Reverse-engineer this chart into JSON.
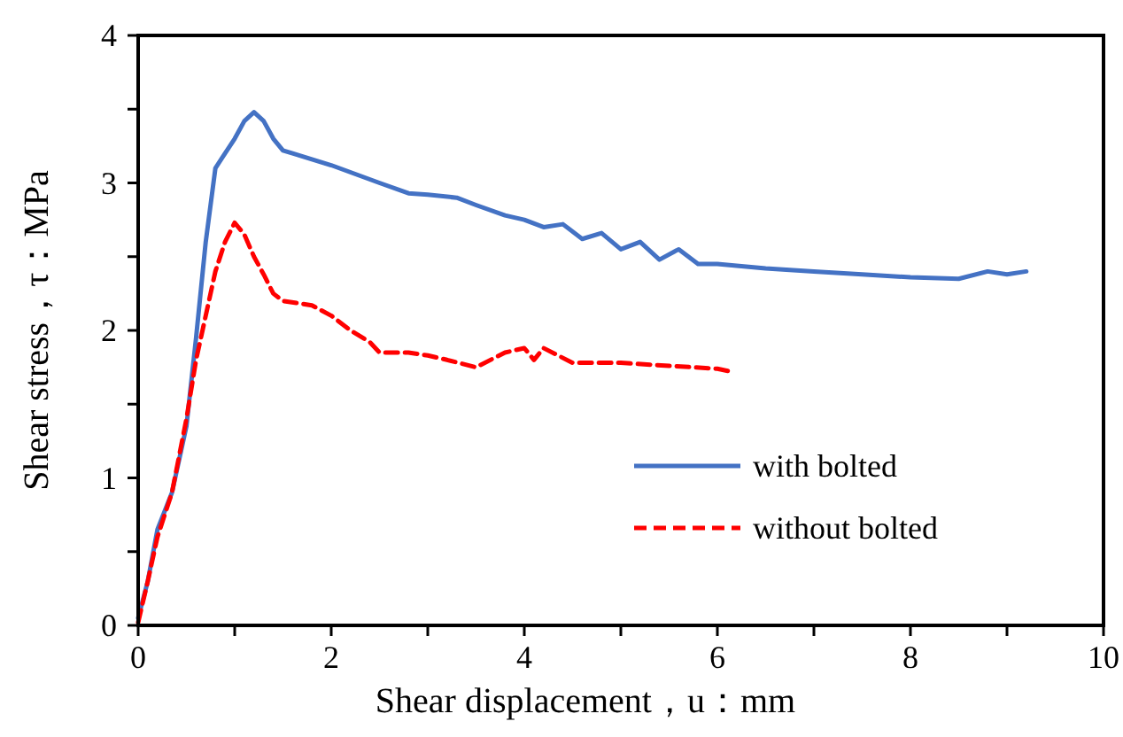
{
  "chart_data": {
    "type": "line",
    "xlabel": "Shear displacement，u：mm",
    "ylabel": "Shear stress，τ：MPa",
    "xlim": [
      0,
      10
    ],
    "ylim": [
      0,
      4
    ],
    "xticks": [
      0,
      {
        "value": 1,
        "label": null
      },
      2,
      {
        "value": 3,
        "label": null
      },
      4,
      {
        "value": 5,
        "label": null
      },
      6,
      {
        "value": 7,
        "label": null
      },
      8,
      {
        "value": 9,
        "label": null
      },
      10
    ],
    "yticks": [
      0,
      {
        "value": 0.5,
        "label": null
      },
      1,
      {
        "value": 1.5,
        "label": null
      },
      2,
      {
        "value": 2.5,
        "label": null
      },
      3,
      {
        "value": 3.5,
        "label": null
      },
      4
    ],
    "grid": false,
    "legend": "bottom right",
    "series": [
      {
        "name": "with bolted",
        "color": "#4472c4",
        "line_style": "solid",
        "x": [
          0,
          0.1,
          0.2,
          0.35,
          0.5,
          0.6,
          0.7,
          0.8,
          0.9,
          1.0,
          1.1,
          1.2,
          1.3,
          1.4,
          1.5,
          1.6,
          2.0,
          2.5,
          2.8,
          3.0,
          3.3,
          3.5,
          3.8,
          4.0,
          4.2,
          4.4,
          4.6,
          4.8,
          5.0,
          5.2,
          5.4,
          5.6,
          5.8,
          6.0,
          6.5,
          7.0,
          7.5,
          8.0,
          8.5,
          8.8,
          9.0,
          9.2
        ],
        "values": [
          0.05,
          0.3,
          0.65,
          0.9,
          1.35,
          1.95,
          2.6,
          3.1,
          3.2,
          3.3,
          3.42,
          3.48,
          3.42,
          3.3,
          3.22,
          3.2,
          3.12,
          3.0,
          2.93,
          2.92,
          2.9,
          2.85,
          2.78,
          2.75,
          2.7,
          2.72,
          2.62,
          2.66,
          2.55,
          2.6,
          2.48,
          2.55,
          2.45,
          2.45,
          2.42,
          2.4,
          2.38,
          2.36,
          2.35,
          2.4,
          2.38,
          2.4
        ]
      },
      {
        "name": "without bolted",
        "color": "#ff0000",
        "line_style": "dashed",
        "x": [
          0,
          0.1,
          0.2,
          0.35,
          0.5,
          0.6,
          0.7,
          0.8,
          0.9,
          1.0,
          1.1,
          1.2,
          1.3,
          1.4,
          1.5,
          1.8,
          2.0,
          2.2,
          2.4,
          2.5,
          2.8,
          3.0,
          3.2,
          3.5,
          3.8,
          4.0,
          4.1,
          4.2,
          4.5,
          5.0,
          5.5,
          6.0,
          6.15
        ],
        "values": [
          0.02,
          0.3,
          0.6,
          0.9,
          1.4,
          1.8,
          2.1,
          2.4,
          2.6,
          2.73,
          2.65,
          2.5,
          2.38,
          2.25,
          2.2,
          2.17,
          2.1,
          2.0,
          1.92,
          1.85,
          1.85,
          1.83,
          1.8,
          1.75,
          1.85,
          1.88,
          1.8,
          1.88,
          1.78,
          1.78,
          1.76,
          1.74,
          1.72
        ]
      }
    ]
  }
}
